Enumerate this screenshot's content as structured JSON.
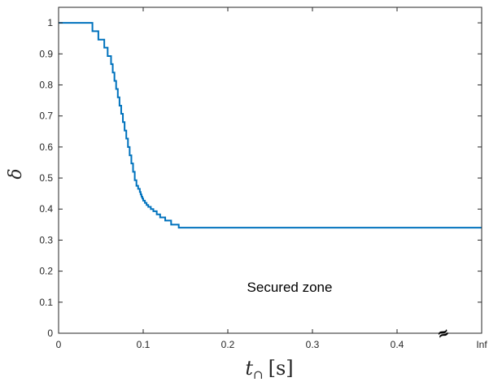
{
  "chart_data": {
    "type": "line",
    "xlabel_main": "t",
    "xlabel_subscript": "∩",
    "xlabel_unit": "[s]",
    "ylabel": "δ",
    "xlim": [
      0,
      0.5
    ],
    "ylim": [
      0,
      1.05
    ],
    "x_ticks": [
      0,
      0.1,
      0.2,
      0.3,
      0.4,
      0.5
    ],
    "x_tick_labels": [
      "0",
      "0.1",
      "0.2",
      "0.3",
      "0.4",
      "Inf"
    ],
    "y_ticks": [
      0,
      0.1,
      0.2,
      0.3,
      0.4,
      0.5,
      0.6,
      0.7,
      0.8,
      0.9,
      1
    ],
    "y_tick_labels": [
      "0",
      "0.1",
      "0.2",
      "0.3",
      "0.4",
      "0.5",
      "0.6",
      "0.7",
      "0.8",
      "0.9",
      "1"
    ],
    "grid": false,
    "annotation": "Secured zone",
    "axis_break_symbol": "≈",
    "series": [
      {
        "style": "stairs",
        "color": "#0072BD",
        "x": [
          0,
          0.04,
          0.047,
          0.054,
          0.058,
          0.062,
          0.064,
          0.066,
          0.068,
          0.07,
          0.072,
          0.074,
          0.076,
          0.078,
          0.08,
          0.082,
          0.084,
          0.086,
          0.088,
          0.09,
          0.092,
          0.094,
          0.096,
          0.097,
          0.098,
          0.099,
          0.1,
          0.102,
          0.104,
          0.106,
          0.109,
          0.112,
          0.116,
          0.12,
          0.126,
          0.133,
          0.142,
          0.5
        ],
        "y": [
          1,
          0.973,
          0.946,
          0.92,
          0.893,
          0.867,
          0.84,
          0.813,
          0.787,
          0.76,
          0.733,
          0.707,
          0.68,
          0.653,
          0.627,
          0.6,
          0.573,
          0.547,
          0.52,
          0.493,
          0.475,
          0.465,
          0.455,
          0.447,
          0.44,
          0.434,
          0.427,
          0.42,
          0.413,
          0.407,
          0.4,
          0.393,
          0.383,
          0.373,
          0.363,
          0.35,
          0.34,
          0.34
        ]
      }
    ]
  }
}
